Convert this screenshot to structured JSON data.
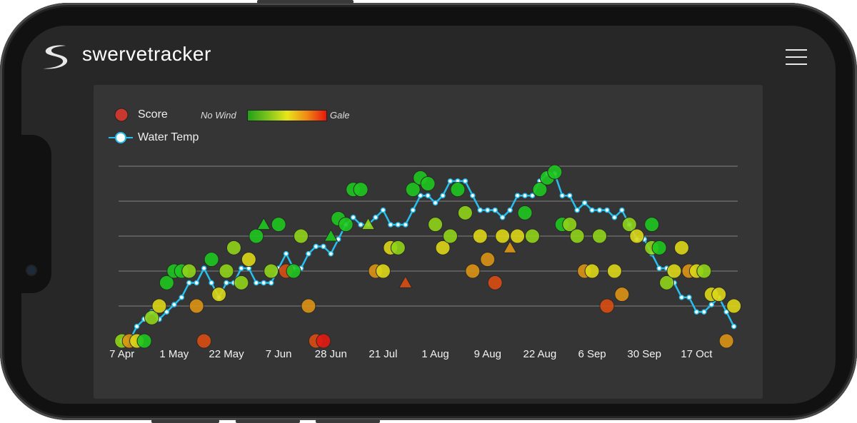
{
  "header": {
    "app_title": "swervetracker",
    "menu_icon": "hamburger-icon",
    "logo_icon": "swerve-s-logo"
  },
  "legend": {
    "score_label": "Score",
    "score_color": "#c8382e",
    "wind_min_label": "No Wind",
    "wind_max_label": "Gale",
    "water_temp_label": "Water Temp",
    "water_temp_color": "#27c0ee"
  },
  "chart_data": {
    "type": "scatter",
    "grid": true,
    "legend_position": "top-left",
    "wind_colors": [
      "#1ec71e",
      "#8fd41a",
      "#dcd616",
      "#dc9414",
      "#d94c12",
      "#e01a12"
    ],
    "score_ylim": [
      0,
      15
    ],
    "x_ticks": [
      {
        "i": 0,
        "label": "7 Apr"
      },
      {
        "i": 7,
        "label": "1 May"
      },
      {
        "i": 14,
        "label": "22 May"
      },
      {
        "i": 21,
        "label": "7 Jun"
      },
      {
        "i": 28,
        "label": "28 Jun"
      },
      {
        "i": 35,
        "label": "21 Jul"
      },
      {
        "i": 42,
        "label": "1 Aug"
      },
      {
        "i": 49,
        "label": "9 Aug"
      },
      {
        "i": 56,
        "label": "22 Aug"
      },
      {
        "i": 63,
        "label": "6 Sep"
      },
      {
        "i": 70,
        "label": "30 Sep"
      },
      {
        "i": 77,
        "label": "17 Oct"
      }
    ],
    "water_temp": [
      0,
      0,
      2,
      3,
      4,
      3,
      4,
      5,
      6,
      8,
      8,
      10,
      8,
      6,
      8,
      8,
      10,
      10,
      8,
      8,
      8,
      10,
      12,
      10,
      10,
      12,
      13,
      13,
      12,
      14,
      16,
      17,
      16,
      16,
      17,
      18,
      16,
      16,
      16,
      18,
      20,
      20,
      19,
      20,
      22,
      22,
      22,
      20,
      18,
      18,
      18,
      17,
      18,
      20,
      20,
      20,
      22,
      23,
      23,
      20,
      20,
      18,
      19,
      18,
      18,
      18,
      17,
      18,
      16,
      14,
      14,
      12,
      10,
      10,
      8,
      6,
      6,
      4,
      4,
      5,
      6,
      4,
      2
    ],
    "scores": [
      {
        "i": 0,
        "score": 0,
        "wind": 1
      },
      {
        "i": 1,
        "score": 0,
        "wind": 3
      },
      {
        "i": 2,
        "score": 0,
        "wind": 2
      },
      {
        "i": 3,
        "score": 0,
        "wind": 0
      },
      {
        "i": 4,
        "score": 2,
        "wind": 1
      },
      {
        "i": 5,
        "score": 3,
        "wind": 2
      },
      {
        "i": 6,
        "score": 5,
        "wind": 0
      },
      {
        "i": 7,
        "score": 6,
        "wind": 0
      },
      {
        "i": 8,
        "score": 6,
        "wind": 0
      },
      {
        "i": 9,
        "score": 6,
        "wind": 1
      },
      {
        "i": 10,
        "score": 3,
        "wind": 3
      },
      {
        "i": 11,
        "score": 0,
        "wind": 4
      },
      {
        "i": 12,
        "score": 7,
        "wind": 0
      },
      {
        "i": 13,
        "score": 4,
        "wind": 2
      },
      {
        "i": 14,
        "score": 6,
        "wind": 1
      },
      {
        "i": 15,
        "score": 8,
        "wind": 1
      },
      {
        "i": 16,
        "score": 5,
        "wind": 1
      },
      {
        "i": 17,
        "score": 7,
        "wind": 2
      },
      {
        "i": 18,
        "score": 9,
        "wind": 0
      },
      {
        "i": 19,
        "score": 10,
        "wind": 0,
        "shape": "triangle"
      },
      {
        "i": 20,
        "score": 6,
        "wind": 1
      },
      {
        "i": 21,
        "score": 10,
        "wind": 0
      },
      {
        "i": 22,
        "score": 6,
        "wind": 4
      },
      {
        "i": 23,
        "score": 6,
        "wind": 0
      },
      {
        "i": 24,
        "score": 9,
        "wind": 1
      },
      {
        "i": 25,
        "score": 3,
        "wind": 3
      },
      {
        "i": 26,
        "score": 0,
        "wind": 4
      },
      {
        "i": 27,
        "score": 0,
        "wind": 5
      },
      {
        "i": 28,
        "score": 9,
        "wind": 0,
        "shape": "triangle"
      },
      {
        "i": 29,
        "score": 10.5,
        "wind": 0
      },
      {
        "i": 30,
        "score": 10,
        "wind": 0
      },
      {
        "i": 31,
        "score": 13,
        "wind": 0
      },
      {
        "i": 32,
        "score": 13,
        "wind": 0
      },
      {
        "i": 33,
        "score": 10,
        "wind": 1,
        "shape": "triangle"
      },
      {
        "i": 34,
        "score": 6,
        "wind": 3
      },
      {
        "i": 35,
        "score": 6,
        "wind": 2
      },
      {
        "i": 36,
        "score": 8,
        "wind": 2
      },
      {
        "i": 37,
        "score": 8,
        "wind": 1
      },
      {
        "i": 38,
        "score": 5,
        "wind": 4,
        "shape": "triangle"
      },
      {
        "i": 39,
        "score": 13,
        "wind": 0
      },
      {
        "i": 40,
        "score": 14,
        "wind": 0
      },
      {
        "i": 41,
        "score": 13.5,
        "wind": 0
      },
      {
        "i": 42,
        "score": 10,
        "wind": 1
      },
      {
        "i": 43,
        "score": 8,
        "wind": 2
      },
      {
        "i": 44,
        "score": 9,
        "wind": 1
      },
      {
        "i": 45,
        "score": 13,
        "wind": 0
      },
      {
        "i": 46,
        "score": 11,
        "wind": 1
      },
      {
        "i": 47,
        "score": 6,
        "wind": 3
      },
      {
        "i": 48,
        "score": 9,
        "wind": 2
      },
      {
        "i": 49,
        "score": 7,
        "wind": 3
      },
      {
        "i": 50,
        "score": 5,
        "wind": 4
      },
      {
        "i": 51,
        "score": 9,
        "wind": 2
      },
      {
        "i": 52,
        "score": 8,
        "wind": 3,
        "shape": "triangle"
      },
      {
        "i": 53,
        "score": 9,
        "wind": 2
      },
      {
        "i": 54,
        "score": 11,
        "wind": 0
      },
      {
        "i": 55,
        "score": 9,
        "wind": 1
      },
      {
        "i": 56,
        "score": 13,
        "wind": 0
      },
      {
        "i": 57,
        "score": 14,
        "wind": 0
      },
      {
        "i": 58,
        "score": 14.5,
        "wind": 0
      },
      {
        "i": 59,
        "score": 10,
        "wind": 0
      },
      {
        "i": 60,
        "score": 10,
        "wind": 1
      },
      {
        "i": 61,
        "score": 9,
        "wind": 1
      },
      {
        "i": 62,
        "score": 6,
        "wind": 3
      },
      {
        "i": 63,
        "score": 6,
        "wind": 2
      },
      {
        "i": 64,
        "score": 9,
        "wind": 1
      },
      {
        "i": 65,
        "score": 3,
        "wind": 4
      },
      {
        "i": 66,
        "score": 6,
        "wind": 2
      },
      {
        "i": 67,
        "score": 4,
        "wind": 3
      },
      {
        "i": 68,
        "score": 10,
        "wind": 1
      },
      {
        "i": 69,
        "score": 9,
        "wind": 2
      },
      {
        "i": 71,
        "score": 10,
        "wind": 0
      },
      {
        "i": 71,
        "score": 8,
        "wind": 1
      },
      {
        "i": 72,
        "score": 8,
        "wind": 0
      },
      {
        "i": 73,
        "score": 5,
        "wind": 1
      },
      {
        "i": 74,
        "score": 6,
        "wind": 2
      },
      {
        "i": 75,
        "score": 8,
        "wind": 2
      },
      {
        "i": 76,
        "score": 6,
        "wind": 3
      },
      {
        "i": 77,
        "score": 6,
        "wind": 2
      },
      {
        "i": 78,
        "score": 6,
        "wind": 1
      },
      {
        "i": 79,
        "score": 4,
        "wind": 2
      },
      {
        "i": 80,
        "score": 4,
        "wind": 2
      },
      {
        "i": 81,
        "score": 0,
        "wind": 3
      },
      {
        "i": 82,
        "score": 3,
        "wind": 2
      }
    ]
  }
}
